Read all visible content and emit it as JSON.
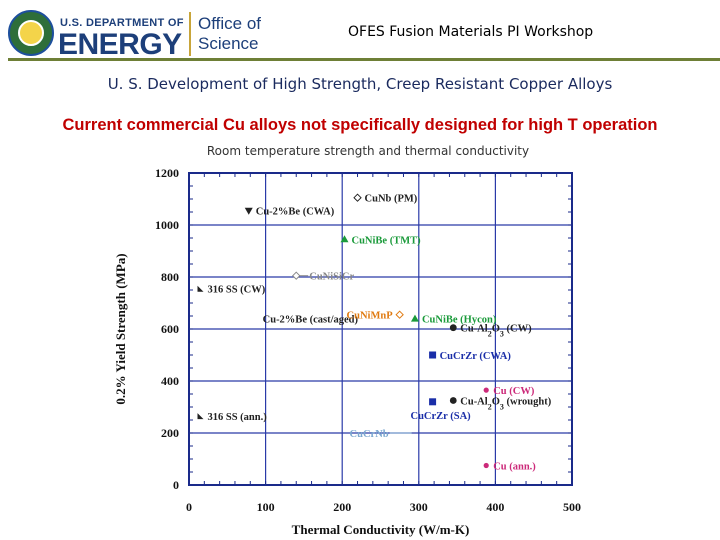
{
  "header": {
    "doe_line1": "U.S. DEPARTMENT OF",
    "doe_line2": "ENERGY",
    "office_line1": "Office of",
    "office_line2": "Science",
    "workshop_title": "OFES Fusion Materials PI Workshop",
    "colors": {
      "doe_blue": "#1d3f7a",
      "rule_green": "#6e7f36"
    }
  },
  "slide": {
    "title": "U. S. Development of High Strength, Creep Resistant Copper Alloys",
    "subtitle": "Current commercial Cu alloys not specifically designed for high T operation",
    "caption": "Room temperature strength and thermal conductivity"
  },
  "chart_data": {
    "type": "scatter",
    "xlabel": "Thermal Conductivity (W/m-K)",
    "ylabel": "0.2% Yield Strength (MPa)",
    "xlim": [
      0,
      500
    ],
    "ylim": [
      0,
      1200
    ],
    "xticks": [
      "0",
      "100",
      "200",
      "300",
      "400",
      "500"
    ],
    "yticks": [
      "0",
      "200",
      "400",
      "600",
      "800",
      "1000",
      "1200"
    ],
    "grid": true,
    "points": [
      {
        "label": "CuNb (PM)",
        "label_parts": [],
        "x": 220,
        "y": 1105,
        "marker": "diamond-open",
        "color": "#222222",
        "side": "right",
        "leader": false
      },
      {
        "label": "Cu-2%Be (CWA)",
        "label_parts": [],
        "x": 78,
        "y": 1055,
        "marker": "triangle-down",
        "color": "#222222",
        "side": "right",
        "leader": false
      },
      {
        "label": "CuNiBe (TMT)",
        "label_parts": [],
        "x": 203,
        "y": 945,
        "marker": "triangle",
        "color": "#1a9a3a",
        "side": "right",
        "leader": false
      },
      {
        "label": "CuNiSiCr",
        "label_parts": [],
        "x": 140,
        "y": 805,
        "marker": "diamond-open",
        "color": "#888888",
        "side": "right",
        "leader": true
      },
      {
        "label": "316 SS (CW)",
        "label_parts": [],
        "x": 15,
        "y": 755,
        "marker": "triangle-small",
        "color": "#222222",
        "side": "right",
        "leader": false
      },
      {
        "label": "Cu-2%Be (cast/aged)",
        "label_parts": [],
        "x": 87,
        "y": 640,
        "marker": "none",
        "color": "#222222",
        "side": "right",
        "leader": false
      },
      {
        "label": "CuNiMnP",
        "label_parts": [],
        "x": 275,
        "y": 655,
        "marker": "diamond-open",
        "color": "#e07a10",
        "side": "left",
        "leader": false
      },
      {
        "label": "CuNiBe (Hycon)",
        "label_parts": [],
        "x": 295,
        "y": 640,
        "marker": "triangle",
        "color": "#1a9a3a",
        "side": "right",
        "leader": false
      },
      {
        "label": "Cu-Al2O3 (CW)",
        "label_parts": [
          "Cu-Al",
          "2",
          "O",
          "3",
          " (CW)"
        ],
        "x": 345,
        "y": 605,
        "marker": "circle",
        "color": "#222222",
        "side": "right",
        "leader": false
      },
      {
        "label": "CuCrZr (CWA)",
        "label_parts": [],
        "x": 318,
        "y": 500,
        "marker": "square",
        "color": "#1a2ea8",
        "side": "right",
        "leader": false
      },
      {
        "label": "Cu (CW)",
        "label_parts": [],
        "x": 388,
        "y": 365,
        "marker": "circle-small",
        "color": "#cc2a7a",
        "side": "right",
        "leader": false
      },
      {
        "label": "Cu-Al2O3 (wrought)",
        "label_parts": [
          "Cu-Al",
          "2",
          "O",
          "3",
          " (wrought)"
        ],
        "x": 345,
        "y": 325,
        "marker": "circle",
        "color": "#222222",
        "side": "right",
        "leader": false
      },
      {
        "label": "CuCrZr (SA)",
        "label_parts": [],
        "x": 318,
        "y": 320,
        "marker": "square",
        "color": "#1a2ea8",
        "side": "below",
        "leader": false
      },
      {
        "label": "316 SS (ann.)",
        "label_parts": [],
        "x": 15,
        "y": 265,
        "marker": "triangle-small",
        "color": "#222222",
        "side": "right",
        "leader": false
      },
      {
        "label": "CuCrNb",
        "label_parts": [],
        "x": 275,
        "y": 200,
        "marker": "none",
        "color": "#7aa7cf",
        "side": "left",
        "leader": true
      },
      {
        "label": "Cu (ann.)",
        "label_parts": [],
        "x": 388,
        "y": 75,
        "marker": "circle-small",
        "color": "#cc2a7a",
        "side": "right",
        "leader": false
      }
    ]
  }
}
